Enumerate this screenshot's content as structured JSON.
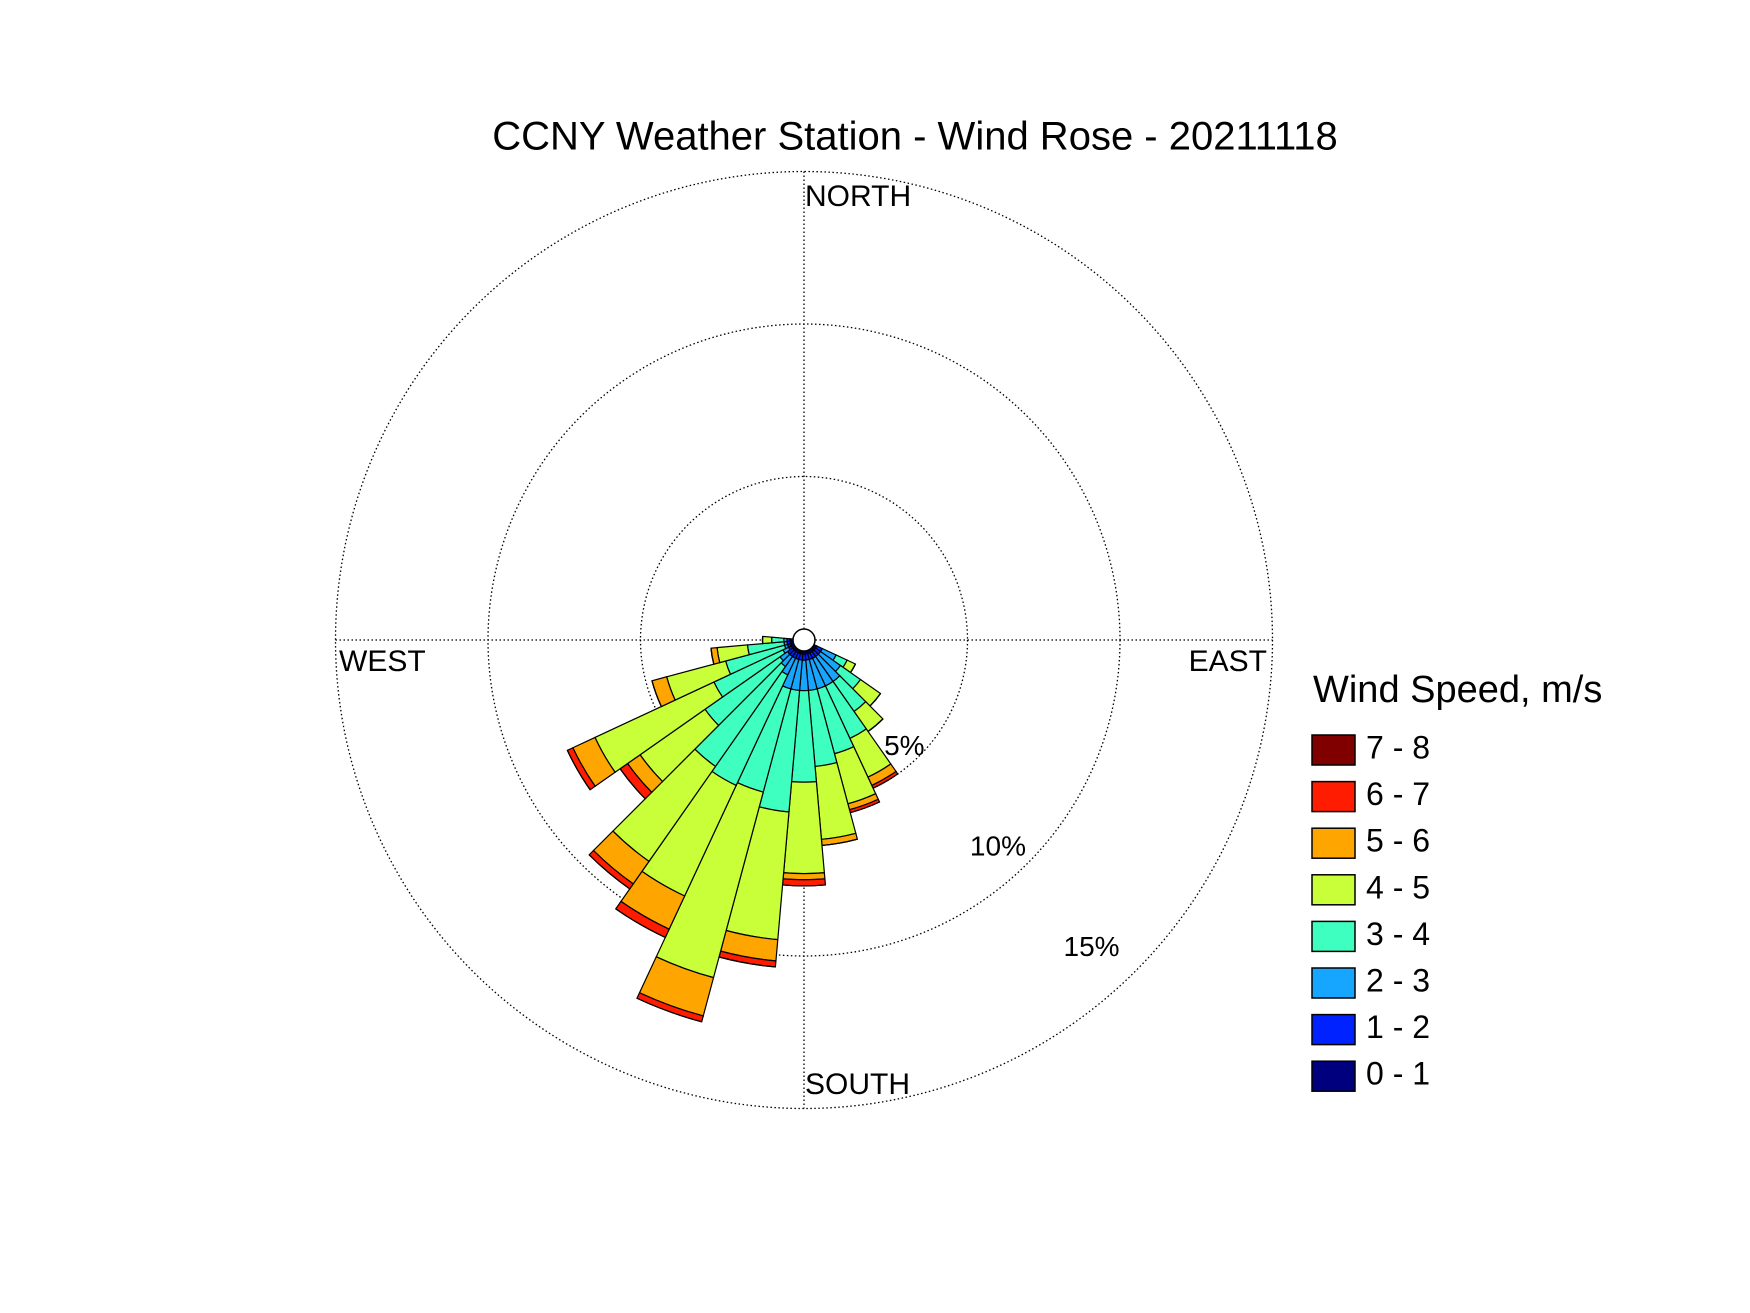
{
  "chart_data": {
    "type": "windrose",
    "title": "CCNY Weather Station - Wind Rose - 20211118",
    "direction_labels": {
      "north": "NORTH",
      "east": "EAST",
      "south": "SOUTH",
      "west": "WEST"
    },
    "x": [
      120,
      130,
      140,
      150,
      160,
      170,
      180,
      190,
      200,
      210,
      220,
      230,
      240,
      250,
      260,
      270
    ],
    "sector_width": 10,
    "ylim": [
      0,
      15
    ],
    "yticks": [
      {
        "value": 5,
        "label": "5%"
      },
      {
        "value": 10,
        "label": "10%"
      },
      {
        "value": 15,
        "label": "15%"
      }
    ],
    "grid": true,
    "legend_title": "Wind Speed, m/s",
    "legend": "right",
    "series": [
      {
        "name": "0 - 1",
        "color": "#00007f",
        "values": [
          0.1,
          0.1,
          0.1,
          0.1,
          0.1,
          0.1,
          0.1,
          0.1,
          0.1,
          0.1,
          0.1,
          0.1,
          0.1,
          0.1,
          0.1,
          0.1
        ]
      },
      {
        "name": "1 - 2",
        "color": "#0022ff",
        "values": [
          0.2,
          0.2,
          0.2,
          0.2,
          0.2,
          0.2,
          0.2,
          0.2,
          0.2,
          0.2,
          0.2,
          0.2,
          0.1,
          0.1,
          0.1,
          0.1
        ]
      },
      {
        "name": "2 - 3",
        "color": "#16a6ff",
        "values": [
          0.5,
          0.8,
          1.0,
          1.0,
          1.0,
          1.0,
          1.0,
          1.0,
          1.0,
          0.6,
          0.4,
          0.3,
          0.2,
          0.1,
          0.1,
          0.1
        ]
      },
      {
        "name": "3 - 4",
        "color": "#3effc0",
        "values": [
          0.4,
          0.8,
          1.2,
          1.9,
          2.2,
          2.5,
          3.0,
          4.0,
          3.5,
          4.0,
          4.0,
          3.0,
          2.5,
          2.0,
          1.2,
          0.4
        ]
      },
      {
        "name": "4 - 5",
        "color": "#c8ff38",
        "values": [
          0.3,
          0.8,
          0.8,
          1.4,
          1.7,
          2.4,
          3.0,
          4.2,
          6.3,
          4.0,
          3.8,
          2.6,
          4.3,
          2.0,
          1.0,
          0.3
        ]
      },
      {
        "name": "5 - 6",
        "color": "#ffa500",
        "values": [
          0,
          0,
          0,
          0.3,
          0.2,
          0.2,
          0.2,
          0.7,
          1.3,
          1.2,
          0.9,
          0.5,
          0.8,
          0.5,
          0.2,
          0
        ]
      },
      {
        "name": "6 - 7",
        "color": "#ff1c00",
        "values": [
          0,
          0,
          0,
          0.1,
          0.1,
          0,
          0.2,
          0.2,
          0.2,
          0.3,
          0.2,
          0.3,
          0.2,
          0,
          0,
          0
        ]
      },
      {
        "name": "7 - 8",
        "color": "#800000",
        "values": [
          0,
          0,
          0,
          0,
          0,
          0,
          0,
          0,
          0,
          0,
          0,
          0,
          0,
          0,
          0,
          0
        ]
      }
    ]
  }
}
